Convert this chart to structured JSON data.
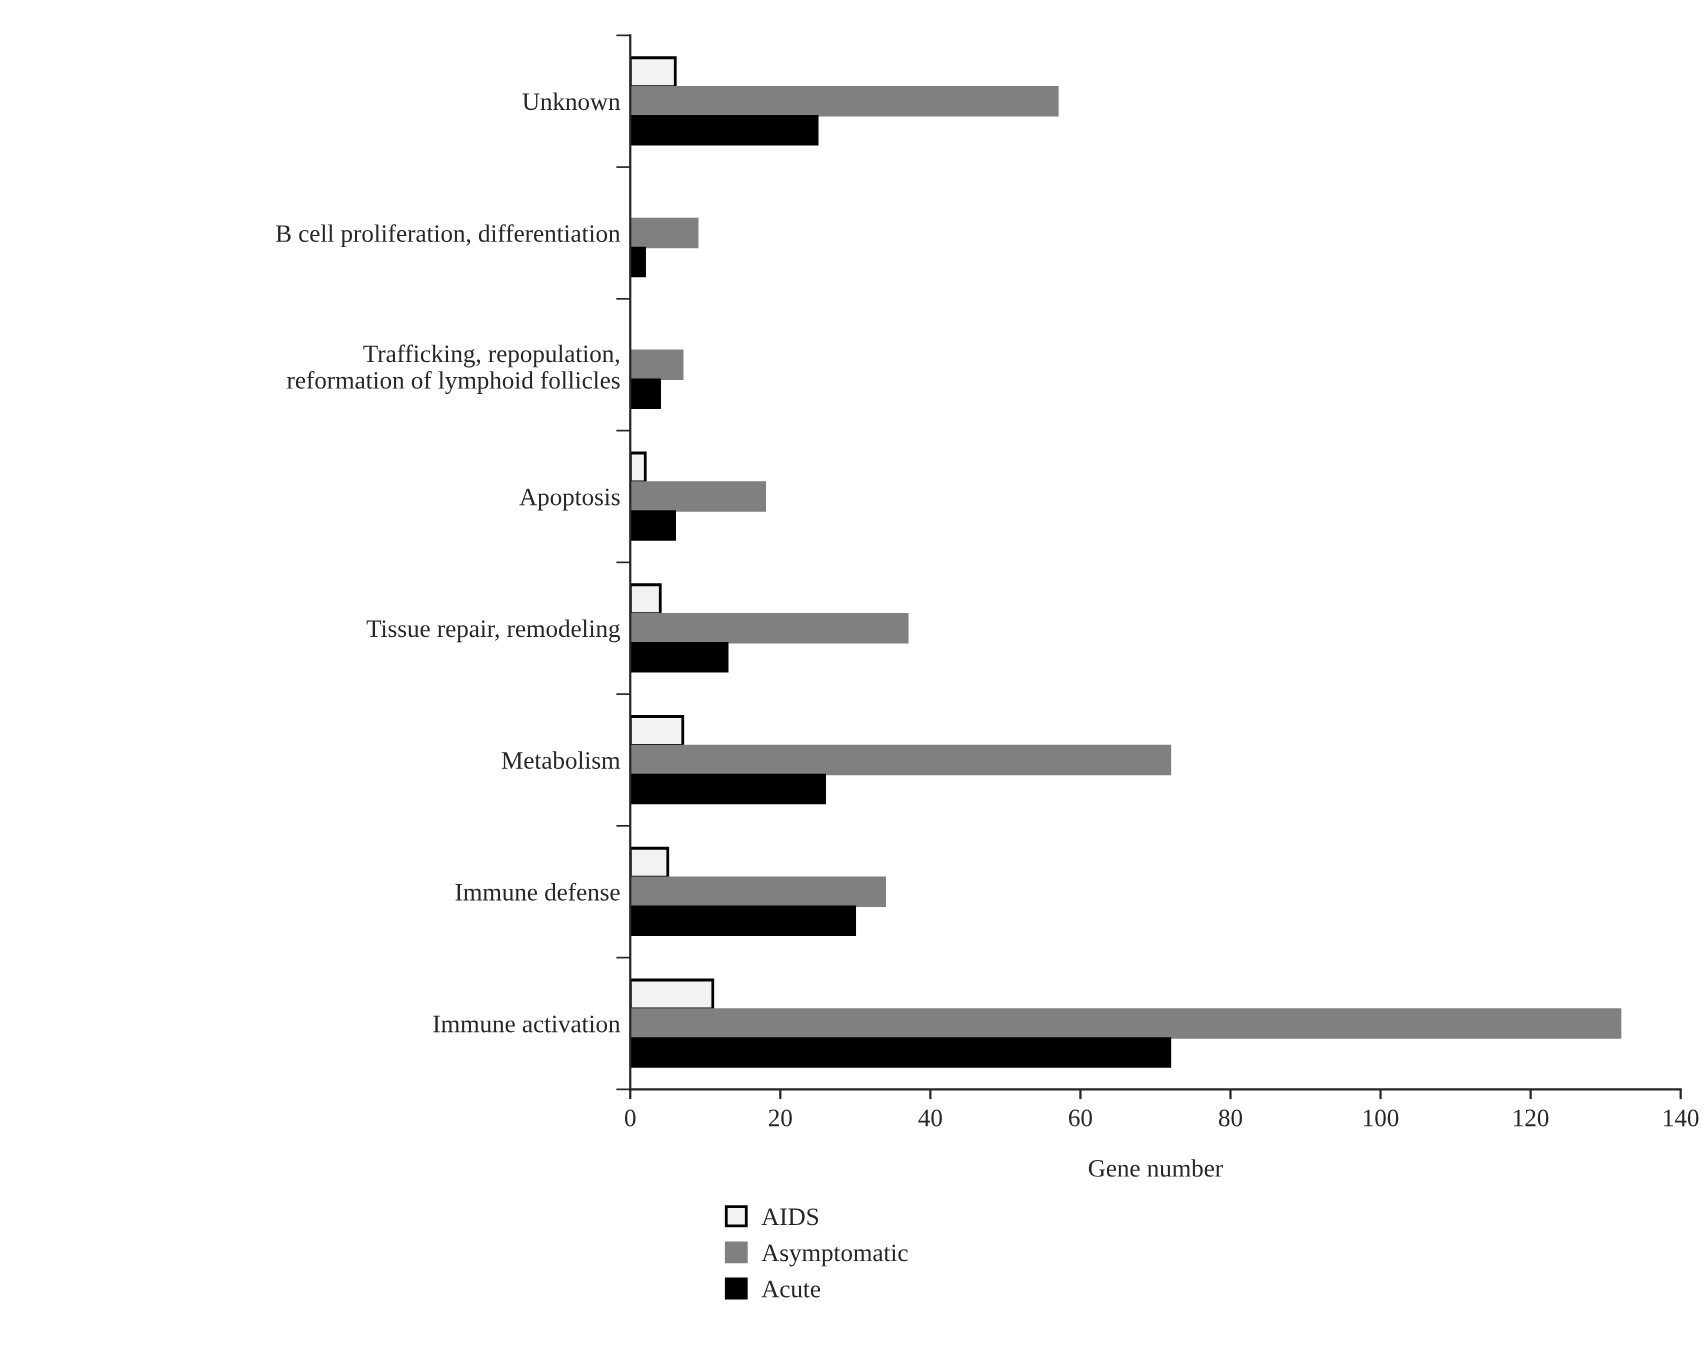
{
  "chart_data": {
    "type": "bar",
    "orientation": "horizontal",
    "xlabel": "Gene number",
    "categories": [
      "Unknown",
      "B cell proliferation, differentiation",
      "Trafficking, repopulation,\nreformation of lymphoid follicles",
      "Apoptosis",
      "Tissue repair, remodeling",
      "Metabolism",
      "Immune defense",
      "Immune activation"
    ],
    "series": [
      {
        "name": "AIDS",
        "color": "#f2f2f2",
        "values": [
          6,
          null,
          null,
          2,
          4,
          7,
          5,
          11
        ]
      },
      {
        "name": "Asymptomatic",
        "color": "#808080",
        "values": [
          57,
          9,
          7,
          18,
          37,
          72,
          34,
          132
        ]
      },
      {
        "name": "Acute",
        "color": "#000000",
        "values": [
          25,
          2,
          4,
          6,
          13,
          26,
          30,
          72
        ]
      }
    ],
    "xlim": [
      0,
      140
    ],
    "xticks": [
      0,
      20,
      40,
      60,
      80,
      100,
      120,
      140
    ],
    "grid": false,
    "legend": "bottom"
  }
}
